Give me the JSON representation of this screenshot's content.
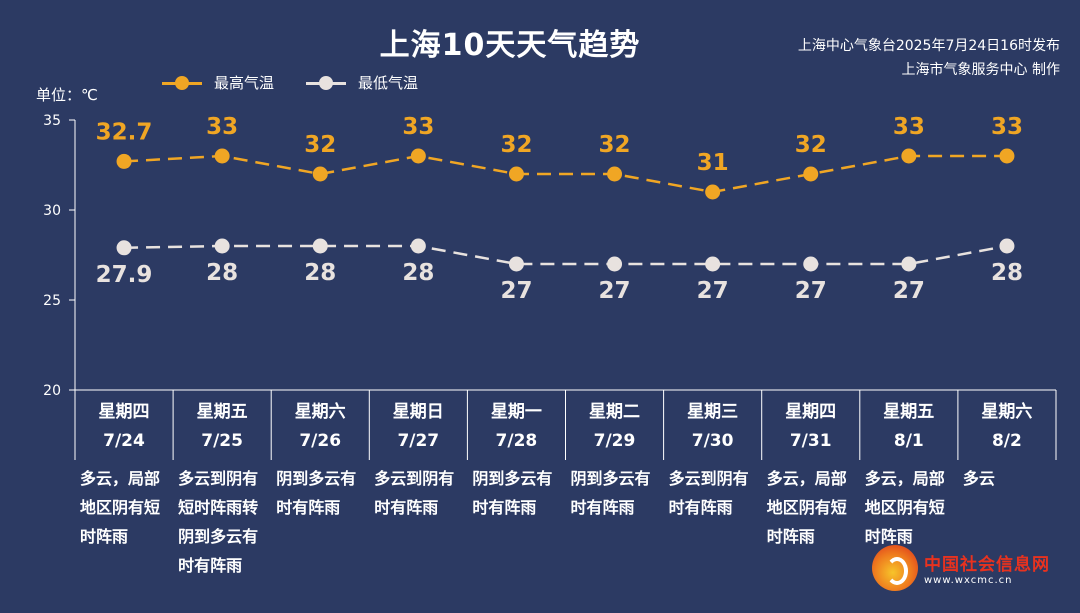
{
  "header": {
    "title": "上海10天天气趋势",
    "issuer_line1": "上海中心气象台2025年7月24日16时发布",
    "issuer_line2": "上海市气象服务中心 制作",
    "unit": "单位：℃"
  },
  "legend": {
    "high": "最高气温",
    "low": "最低气温"
  },
  "colors": {
    "background": "#2c3a63",
    "high": "#f0a624",
    "low": "#e8e2df",
    "axis": "#ffffff"
  },
  "chart_data": {
    "type": "line",
    "categories": [
      "7/24",
      "7/25",
      "7/26",
      "7/27",
      "7/28",
      "7/29",
      "7/30",
      "7/31",
      "8/1",
      "8/2"
    ],
    "weekdays": [
      "星期四",
      "星期五",
      "星期六",
      "星期日",
      "星期一",
      "星期二",
      "星期三",
      "星期四",
      "星期五",
      "星期六"
    ],
    "conditions": [
      "多云，局部地区阴有短时阵雨",
      "多云到阴有短时阵雨转阴到多云有时有阵雨",
      "阴到多云有时有阵雨",
      "多云到阴有时有阵雨",
      "阴到多云有时有阵雨",
      "阴到多云有时有阵雨",
      "多云到阴有时有阵雨",
      "多云，局部地区阴有短时阵雨",
      "多云，局部地区阴有短时阵雨",
      "多云"
    ],
    "series": [
      {
        "name": "最高气温",
        "values": [
          32.7,
          33,
          32,
          33,
          32,
          32,
          31,
          32,
          33,
          33
        ]
      },
      {
        "name": "最低气温",
        "values": [
          27.9,
          28,
          28,
          28,
          27,
          27,
          27,
          27,
          27,
          28
        ]
      }
    ],
    "ylim": [
      20,
      35
    ],
    "yticks": [
      "20",
      "25",
      "30",
      "35"
    ],
    "grid": false,
    "legend_position": "top-left"
  },
  "watermark": {
    "name": "中国社会信息网",
    "url": "www.wxcmc.cn"
  }
}
